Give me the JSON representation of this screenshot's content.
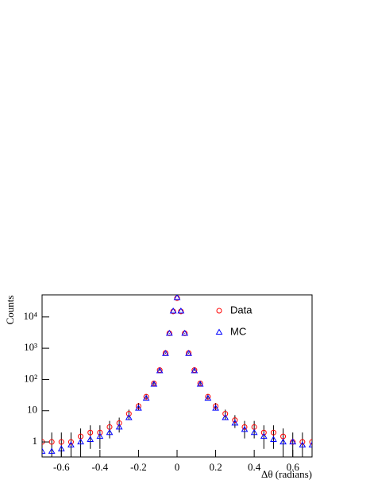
{
  "chart_data": {
    "type": "scatter",
    "x_label": "Δθ (radians)",
    "y_label": "Counts",
    "log_y": true,
    "grid": false,
    "legend": "top-right",
    "xlim": [
      -0.7,
      0.7
    ],
    "ylim": [
      0.33,
      51000
    ],
    "xticks": [
      -0.6,
      -0.4,
      -0.2,
      0,
      0.2,
      0.4,
      0.6
    ],
    "yticks": [
      1,
      10,
      {
        "value": 100,
        "label": "10²"
      },
      {
        "value": 1000,
        "label": "10³"
      },
      {
        "value": 10000,
        "label": "10⁴"
      }
    ],
    "x": [
      -0.7,
      -0.65,
      -0.6,
      -0.55,
      -0.5,
      -0.45,
      -0.4,
      -0.35,
      -0.3,
      -0.25,
      -0.2,
      -0.16,
      -0.12,
      -0.09,
      -0.06,
      -0.04,
      -0.02,
      0,
      0.02,
      0.04,
      0.06,
      0.09,
      0.12,
      0.16,
      0.2,
      0.25,
      0.3,
      0.35,
      0.4,
      0.45,
      0.5,
      0.55,
      0.6,
      0.65,
      0.7
    ],
    "series": [
      {
        "name": "Data",
        "color": "#ff0000",
        "marker": "circle",
        "values": [
          1,
          1,
          1,
          1,
          1.5,
          2,
          2,
          3,
          4,
          8,
          14,
          28,
          75,
          200,
          700,
          3000,
          15000,
          40000,
          15000,
          3000,
          700,
          200,
          75,
          28,
          14,
          8,
          5,
          3,
          3,
          2,
          2,
          1.5,
          1,
          1,
          1
        ],
        "errors": [
          1,
          1,
          1,
          1,
          1.2,
          1.4,
          1.4,
          1.7,
          2,
          2.8,
          3.7,
          5.3,
          8.7,
          14,
          26,
          55,
          122,
          200,
          122,
          55,
          26,
          14,
          8.7,
          5.3,
          3.7,
          2.8,
          2.2,
          1.7,
          1.7,
          1.4,
          1.4,
          1.2,
          1,
          1,
          1
        ]
      },
      {
        "name": "MC",
        "color": "#0000ff",
        "marker": "triangle",
        "values": [
          0.5,
          0.5,
          0.6,
          0.8,
          1,
          1.2,
          1.5,
          2,
          3,
          6,
          12,
          25,
          70,
          190,
          680,
          3000,
          15500,
          42000,
          15500,
          3000,
          680,
          190,
          70,
          25,
          12,
          6,
          4,
          2.5,
          2,
          1.5,
          1.2,
          1,
          1,
          0.8,
          0.8
        ]
      }
    ]
  }
}
